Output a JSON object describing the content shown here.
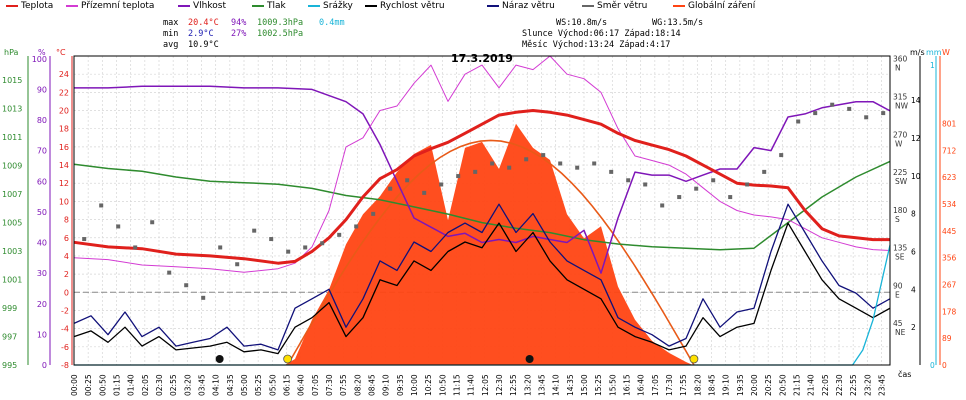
{
  "legend": [
    {
      "label": "Teplota",
      "color": "#e0201c"
    },
    {
      "label": "Přízemní teplota",
      "color": "#d33bd3"
    },
    {
      "label": "Vlhkost",
      "color": "#7f16b8"
    },
    {
      "label": "Tlak",
      "color": "#2e8b2e"
    },
    {
      "label": "Srážky",
      "color": "#19b4d8"
    },
    {
      "label": "Rychlost větru",
      "color": "#000000"
    },
    {
      "label": "Náraz větru",
      "color": "#11117a"
    },
    {
      "label": "Směr větru",
      "color": "#666666"
    },
    {
      "label": "Globální záření",
      "color": "#ff4413"
    }
  ],
  "stats": {
    "max_label": "max",
    "max_temp": "20.4°C",
    "max_hum": "94%",
    "max_press": "1009.3hPa",
    "rain": "0.4mm",
    "min_label": "min",
    "min_temp": "2.9°C",
    "min_hum": "27%",
    "min_press": "1002.5hPa",
    "avg_label": "avg",
    "avg_temp": "10.9°C",
    "ws": "WS:10.8m/s",
    "wg": "WG:13.5m/s",
    "sun_line": "Slunce Východ:06:17  Západ:18:14",
    "moon_line": "Měsíc  Východ:13:24  Západ:4:17"
  },
  "chart_data": {
    "type": "line",
    "title": "17.3.2019",
    "xlabel": "čas",
    "x_ticks": [
      "00:00",
      "00:25",
      "00:50",
      "01:15",
      "01:40",
      "02:05",
      "02:30",
      "02:55",
      "03:20",
      "03:45",
      "04:10",
      "04:35",
      "05:00",
      "05:25",
      "05:50",
      "06:15",
      "06:40",
      "07:05",
      "07:30",
      "07:55",
      "08:20",
      "08:45",
      "09:10",
      "09:35",
      "10:00",
      "10:25",
      "10:50",
      "11:15",
      "11:40",
      "12:05",
      "12:30",
      "12:55",
      "13:20",
      "13:45",
      "14:10",
      "14:35",
      "15:00",
      "15:25",
      "15:50",
      "16:15",
      "16:40",
      "17:05",
      "17:30",
      "17:55",
      "18:20",
      "18:45",
      "19:10",
      "19:35",
      "20:00",
      "20:25",
      "20:50",
      "21:15",
      "21:40",
      "22:05",
      "22:30",
      "22:55",
      "23:20",
      "23:45"
    ],
    "axes": {
      "hpa": {
        "label": "hPa",
        "ticks": [
          "995",
          "997",
          "999",
          "1001",
          "1003",
          "1005",
          "1007",
          "1009",
          "1011",
          "1013",
          "1015"
        ],
        "range": [
          995,
          1016.7
        ]
      },
      "pct": {
        "label": "%",
        "ticks": [
          "0",
          "10",
          "20",
          "30",
          "40",
          "50",
          "60",
          "70",
          "80",
          "90",
          "100"
        ]
      },
      "temp": {
        "label": "°C",
        "ticks": [
          "-8",
          "-6",
          "-4",
          "-2",
          "0",
          "2",
          "4",
          "6",
          "8",
          "10",
          "12",
          "14",
          "16",
          "18",
          "20",
          "22",
          "24"
        ],
        "range": [
          -8,
          26
        ]
      },
      "dir": {
        "ticks": [
          {
            "deg": "45",
            "dir": "NE"
          },
          {
            "deg": "90",
            "dir": "E"
          },
          {
            "deg": "135",
            "dir": "SE"
          },
          {
            "deg": "180",
            "dir": "S"
          },
          {
            "deg": "225",
            "dir": "SW"
          },
          {
            "deg": "270",
            "dir": "W"
          },
          {
            "deg": "315",
            "dir": "NW"
          },
          {
            "deg": "360",
            "dir": "N"
          }
        ]
      },
      "ms": {
        "label": "m/s",
        "ticks": [
          "2",
          "4",
          "6",
          "8",
          "10",
          "12",
          "14"
        ]
      },
      "mm": {
        "label": "mm",
        "ticks": [
          "0",
          "1"
        ]
      },
      "w": {
        "label": "W",
        "ticks": [
          "0",
          "89",
          "178",
          "267",
          "356",
          "445",
          "534",
          "623",
          "712",
          "801"
        ]
      }
    },
    "marks": {
      "moon_set": "04:17",
      "sun_rise": "06:17",
      "moon_rise": "13:24",
      "sun_set": "18:14"
    },
    "series": [
      {
        "name": "Teplota",
        "unit": "°C",
        "color": "#e0201c",
        "x": [
          0,
          1,
          2,
          3,
          4,
          5,
          6,
          6.5,
          7,
          7.5,
          8,
          8.5,
          9,
          9.5,
          10,
          10.5,
          11,
          11.5,
          12,
          12.5,
          13,
          13.5,
          14,
          14.5,
          15,
          15.5,
          16,
          16.5,
          17,
          17.5,
          18,
          18.5,
          19,
          19.5,
          20,
          20.5,
          21,
          21.5,
          22,
          22.5,
          23,
          23.5,
          24
        ],
        "y": [
          5.5,
          5,
          4.8,
          4.2,
          4,
          3.7,
          3.2,
          3.4,
          4.5,
          6,
          8,
          10.5,
          12.5,
          13.5,
          15,
          15.8,
          16.5,
          17.5,
          18.5,
          19.5,
          19.8,
          20,
          19.8,
          19.5,
          19,
          18.5,
          17.5,
          16.7,
          16.2,
          15.7,
          15,
          14,
          13,
          12,
          11.8,
          11.7,
          11.5,
          9,
          7,
          6.2,
          6,
          5.8,
          5.8
        ]
      },
      {
        "name": "Přízemní teplota",
        "unit": "°C",
        "color": "#d33bd3",
        "x": [
          0,
          1,
          2,
          3,
          4,
          5,
          6,
          6.5,
          7,
          7.5,
          8,
          8.5,
          9,
          9.5,
          10,
          10.5,
          11,
          11.5,
          12,
          12.5,
          13,
          13.5,
          14,
          14.5,
          15,
          15.5,
          16,
          16.5,
          17,
          17.5,
          18,
          18.5,
          19,
          19.5,
          20,
          20.5,
          21,
          21.5,
          22,
          22.5,
          23,
          23.5,
          24
        ],
        "y": [
          3.8,
          3.6,
          3,
          2.8,
          2.6,
          2.2,
          2.6,
          3.2,
          5,
          9,
          16,
          17,
          20,
          20.5,
          23,
          25,
          21,
          24,
          25,
          22.5,
          25,
          24.5,
          26,
          24,
          23.5,
          22,
          18,
          15,
          14.5,
          14,
          13,
          11.5,
          10,
          9,
          8.5,
          8.3,
          8,
          7,
          6,
          5.5,
          5,
          4.7,
          4.6
        ]
      },
      {
        "name": "Vlhkost",
        "unit": "%",
        "color": "#7f16b8",
        "x": [
          0,
          1,
          2,
          3,
          4,
          5,
          6,
          7,
          8,
          8.5,
          9,
          9.5,
          10,
          10.5,
          11,
          11.5,
          12,
          12.5,
          13,
          13.5,
          14,
          14.5,
          15,
          15.5,
          16,
          16.5,
          17,
          17.5,
          18,
          18.5,
          19,
          19.5,
          20,
          20.5,
          21,
          21.5,
          22,
          22.5,
          23,
          23.5,
          24
        ],
        "y": [
          90.5,
          90.5,
          91,
          91,
          91,
          90.5,
          90.5,
          90,
          86,
          82,
          72,
          60,
          48,
          45,
          42,
          43,
          40,
          41,
          40,
          42,
          41,
          40,
          44,
          30,
          48,
          63,
          62,
          62,
          60,
          62,
          64,
          64,
          71,
          70,
          81,
          82,
          84,
          85,
          86,
          86,
          83
        ]
      },
      {
        "name": "Tlak",
        "unit": "hPa",
        "color": "#2e8b2e",
        "x": [
          0,
          1,
          2,
          3,
          4,
          5,
          6,
          7,
          8,
          9,
          10,
          11,
          12,
          13,
          14,
          15,
          16,
          17,
          18,
          19,
          20,
          21,
          22,
          23,
          24
        ],
        "y": [
          1009.1,
          1008.8,
          1008.6,
          1008.2,
          1007.9,
          1007.8,
          1007.7,
          1007.4,
          1006.9,
          1006.6,
          1006.1,
          1005.6,
          1005.0,
          1004.6,
          1004.3,
          1003.8,
          1003.5,
          1003.3,
          1003.2,
          1003.1,
          1003.2,
          1005.0,
          1006.8,
          1008.2,
          1009.3
        ]
      },
      {
        "name": "Rychlost větru",
        "unit": "m/s",
        "color": "#000000",
        "x": [
          0,
          0.5,
          1,
          1.5,
          2,
          2.5,
          3,
          3.5,
          4,
          4.5,
          5,
          5.5,
          6,
          6.5,
          7,
          7.5,
          8,
          8.5,
          9,
          9.5,
          10,
          10.5,
          11,
          11.5,
          12,
          12.5,
          13,
          13.5,
          14,
          14.5,
          15,
          15.5,
          16,
          16.5,
          17,
          17.5,
          18,
          18.5,
          19,
          19.5,
          20,
          20.5,
          21,
          21.5,
          22,
          22.5,
          23,
          23.5,
          24
        ],
        "y": [
          1.5,
          1.8,
          1.2,
          2.0,
          1.0,
          1.5,
          0.8,
          0.9,
          1.0,
          1.2,
          0.7,
          0.8,
          0.6,
          2.0,
          2.5,
          3.3,
          1.5,
          2.5,
          4.5,
          4.2,
          5.5,
          5.0,
          6.0,
          6.5,
          6.2,
          7.5,
          6.0,
          7.0,
          5.5,
          4.5,
          4.0,
          3.5,
          2.0,
          1.5,
          1.2,
          0.8,
          1.0,
          2.5,
          1.5,
          2.0,
          2.2,
          5.0,
          7.5,
          6.0,
          4.5,
          3.5,
          3.0,
          2.5,
          3.0
        ]
      },
      {
        "name": "Náraz větru",
        "unit": "m/s",
        "color": "#11117a",
        "x": [
          0,
          0.5,
          1,
          1.5,
          2,
          2.5,
          3,
          3.5,
          4,
          4.5,
          5,
          5.5,
          6,
          6.5,
          7,
          7.5,
          8,
          8.5,
          9,
          9.5,
          10,
          10.5,
          11,
          11.5,
          12,
          12.5,
          13,
          13.5,
          14,
          14.5,
          15,
          15.5,
          16,
          16.5,
          17,
          17.5,
          18,
          18.5,
          19,
          19.5,
          20,
          20.5,
          21,
          21.5,
          22,
          22.5,
          23,
          23.5,
          24
        ],
        "y": [
          2.2,
          2.6,
          1.6,
          2.8,
          1.5,
          2.0,
          1.0,
          1.2,
          1.4,
          2.0,
          1.0,
          1.1,
          0.8,
          3.0,
          3.5,
          4.0,
          2.0,
          3.5,
          5.5,
          5.0,
          6.5,
          6.0,
          7.0,
          7.5,
          7.0,
          8.5,
          7.0,
          8.0,
          6.5,
          5.5,
          5.0,
          4.5,
          2.5,
          2.0,
          1.6,
          1.0,
          1.4,
          3.5,
          2.0,
          2.8,
          3.0,
          6.0,
          8.5,
          7.0,
          5.5,
          4.2,
          3.8,
          3.0,
          3.5
        ]
      },
      {
        "name": "Směr větru",
        "unit": "°",
        "color": "#666666",
        "x": [
          0.3,
          0.8,
          1.3,
          1.8,
          2.3,
          2.8,
          3.3,
          3.8,
          4.3,
          4.8,
          5.3,
          5.8,
          6.3,
          6.8,
          7.3,
          7.8,
          8.3,
          8.8,
          9.3,
          9.8,
          10.3,
          10.8,
          11.3,
          11.8,
          12.3,
          12.8,
          13.3,
          13.8,
          14.3,
          14.8,
          15.3,
          15.8,
          16.3,
          16.8,
          17.3,
          17.8,
          18.3,
          18.8,
          19.3,
          19.8,
          20.3,
          20.8,
          21.3,
          21.8,
          22.3,
          22.8,
          23.3,
          23.8
        ],
        "y": [
          150,
          190,
          165,
          140,
          170,
          110,
          95,
          80,
          140,
          120,
          160,
          150,
          135,
          140,
          145,
          155,
          165,
          180,
          210,
          220,
          205,
          215,
          225,
          230,
          240,
          235,
          245,
          250,
          240,
          235,
          240,
          230,
          220,
          215,
          190,
          200,
          210,
          220,
          200,
          215,
          230,
          250,
          290,
          300,
          310,
          305,
          295,
          300
        ]
      },
      {
        "name": "Globální záření",
        "unit": "W",
        "color": "#ff4413",
        "x": [
          0,
          6.2,
          6.5,
          7,
          7.5,
          8,
          8.5,
          9,
          9.5,
          10,
          10.5,
          11,
          11.5,
          12,
          12.5,
          13,
          13.5,
          14,
          14.5,
          15,
          15.5,
          16,
          16.5,
          17,
          17.5,
          18,
          18.2,
          24
        ],
        "y": [
          0,
          0,
          20,
          150,
          250,
          400,
          500,
          560,
          640,
          700,
          730,
          480,
          720,
          740,
          650,
          800,
          720,
          680,
          500,
          420,
          460,
          260,
          150,
          80,
          40,
          10,
          0,
          0
        ]
      },
      {
        "name": "Srážky",
        "unit": "mm",
        "color": "#19b4d8",
        "x": [
          0,
          22.9,
          23.2,
          23.5,
          23.8,
          24
        ],
        "y": [
          0,
          0,
          0.05,
          0.15,
          0.3,
          0.4
        ]
      }
    ]
  }
}
